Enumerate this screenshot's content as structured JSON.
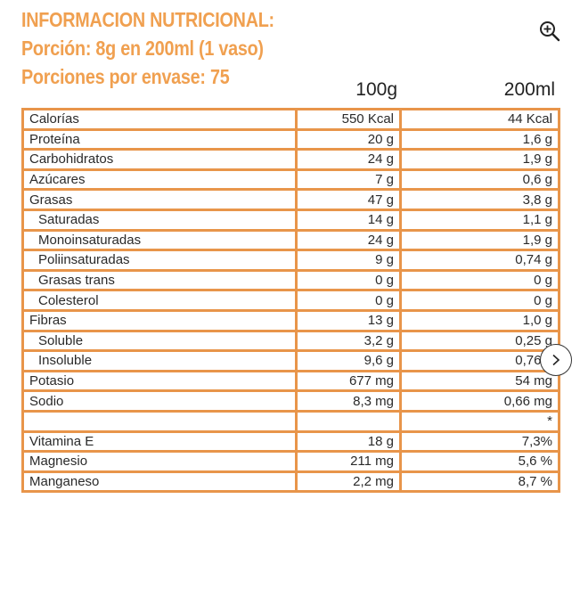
{
  "header": {
    "title": "INFORMACION NUTRICIONAL:",
    "portion": "Porción: 8g en 200ml (1 vaso)",
    "servings": "Porciones por envase: 75"
  },
  "columns": {
    "c1": "100g",
    "c2": "200ml"
  },
  "rows": [
    {
      "name": "Calorías",
      "v100": "550 Kcal",
      "v200": "44 Kcal",
      "sub": false
    },
    {
      "name": "Proteína",
      "v100": "20 g",
      "v200": "1,6 g",
      "sub": false
    },
    {
      "name": "Carbohidratos",
      "v100": "24 g",
      "v200": "1,9 g",
      "sub": false
    },
    {
      "name": "Azúcares",
      "v100": "7 g",
      "v200": "0,6 g",
      "sub": false
    },
    {
      "name": "Grasas",
      "v100": "47 g",
      "v200": "3,8 g",
      "sub": false
    },
    {
      "name": "Saturadas",
      "v100": "14 g",
      "v200": "1,1 g",
      "sub": true
    },
    {
      "name": "Monoinsaturadas",
      "v100": "24 g",
      "v200": "1,9 g",
      "sub": true
    },
    {
      "name": "Poliinsaturadas",
      "v100": "9 g",
      "v200": "0,74 g",
      "sub": true
    },
    {
      "name": "Grasas trans",
      "v100": "0 g",
      "v200": "0 g",
      "sub": true
    },
    {
      "name": "Colesterol",
      "v100": "0 g",
      "v200": "0 g",
      "sub": true
    },
    {
      "name": "Fibras",
      "v100": "13 g",
      "v200": "1,0 g",
      "sub": false
    },
    {
      "name": "Soluble",
      "v100": "3,2 g",
      "v200": "0,25 g",
      "sub": true
    },
    {
      "name": "Insoluble",
      "v100": "9,6 g",
      "v200": "0,76 g",
      "sub": true
    },
    {
      "name": "Potasio",
      "v100": "677 mg",
      "v200": "54 mg",
      "sub": false
    },
    {
      "name": "Sodio",
      "v100": "8,3 mg",
      "v200": "0,66 mg",
      "sub": false
    },
    {
      "name": "",
      "v100": "",
      "v200": "*",
      "sub": false
    },
    {
      "name": "Vitamina E",
      "v100": "18 g",
      "v200": "7,3%",
      "sub": false
    },
    {
      "name": "Magnesio",
      "v100": "211 mg",
      "v200": "5,6 %",
      "sub": false
    },
    {
      "name": "Manganeso",
      "v100": "2,2 mg",
      "v200": "8,7 %",
      "sub": false
    }
  ],
  "icons": {
    "zoom": "zoom-in-icon",
    "next": "chevron-right-icon"
  },
  "colors": {
    "accent": "#f0a050",
    "border": "#e8954a"
  }
}
